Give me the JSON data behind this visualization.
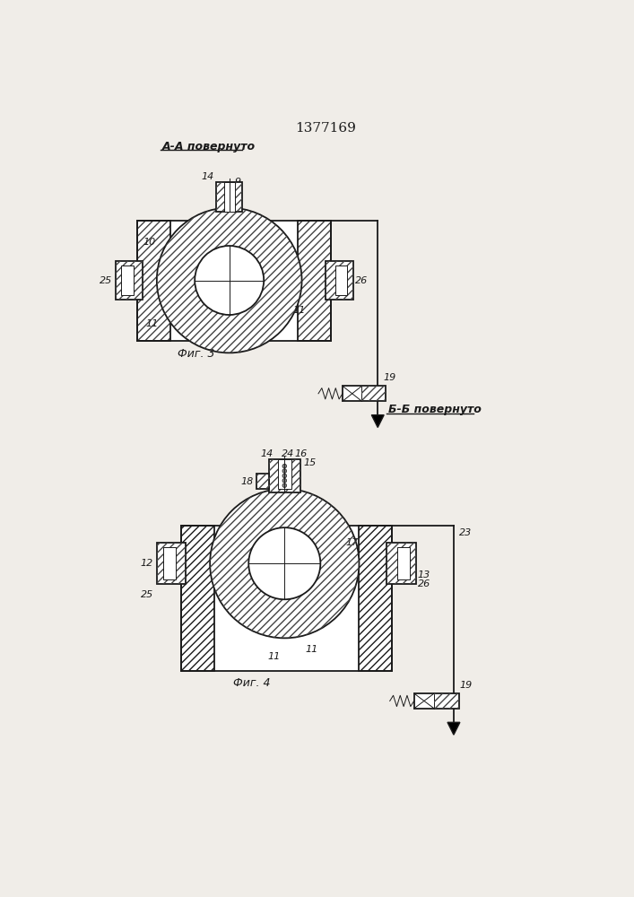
{
  "title": "1377169",
  "fig3_label": "А-А повернуто",
  "fig4_label": "Б-Б повернуто",
  "fig3_caption": "Фиг. 3",
  "fig4_caption": "Фиг. 4",
  "bg_color": "#f0ede8",
  "line_color": "#1a1a1a"
}
